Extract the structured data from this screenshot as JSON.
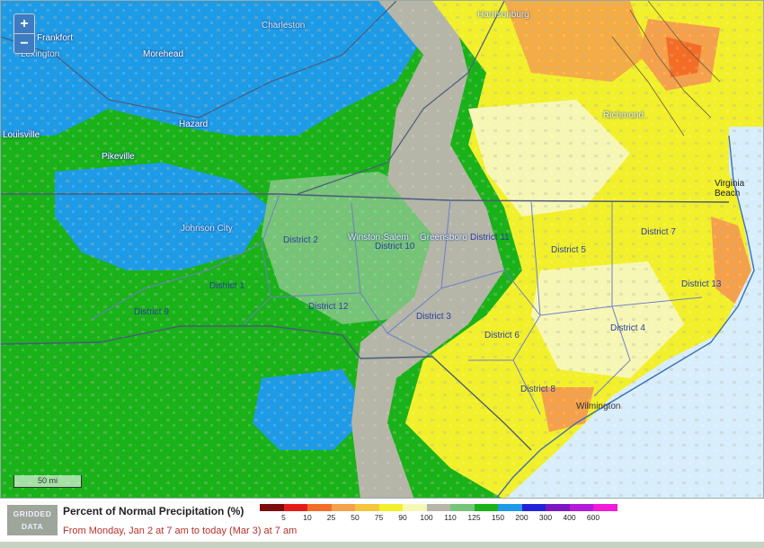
{
  "map": {
    "zoom_in": "+",
    "zoom_out": "−",
    "scale_label": "50 mi",
    "districts": [
      "District 1",
      "District 2",
      "District 3",
      "District 4",
      "District 5",
      "District 6",
      "District 7",
      "District 8",
      "District 9",
      "District 10",
      "District 11",
      "District 12",
      "District 13"
    ],
    "cities": [
      "Frankfort",
      "Lexington",
      "Morehead",
      "Charleston",
      "Hazard",
      "Pikeville",
      "Harrisonburg",
      "Richmond",
      "Virginia Beach",
      "Johnson City",
      "Winston-Salem",
      "Greensboro",
      "Wilmington",
      "Louisville"
    ]
  },
  "legend": {
    "badge_line1": "GRIDDED",
    "badge_line2": "DATA",
    "title": "Percent of Normal Precipitation (%)",
    "period": "From Monday, Jan 2 at 7 am to today (Mar 3) at 7 am",
    "colors": [
      "#7d0d0d",
      "#e51c1c",
      "#f56d25",
      "#f5a04a",
      "#f3c63c",
      "#f2f02a",
      "#f7f7b5",
      "#b5b5a8",
      "#76c477",
      "#19b219",
      "#1e9be6",
      "#2323d9",
      "#7a16c2",
      "#b31ad9",
      "#f01ad9"
    ],
    "ticks": [
      "5",
      "10",
      "25",
      "50",
      "75",
      "90",
      "100",
      "110",
      "125",
      "150",
      "200",
      "300",
      "400",
      "600"
    ]
  }
}
